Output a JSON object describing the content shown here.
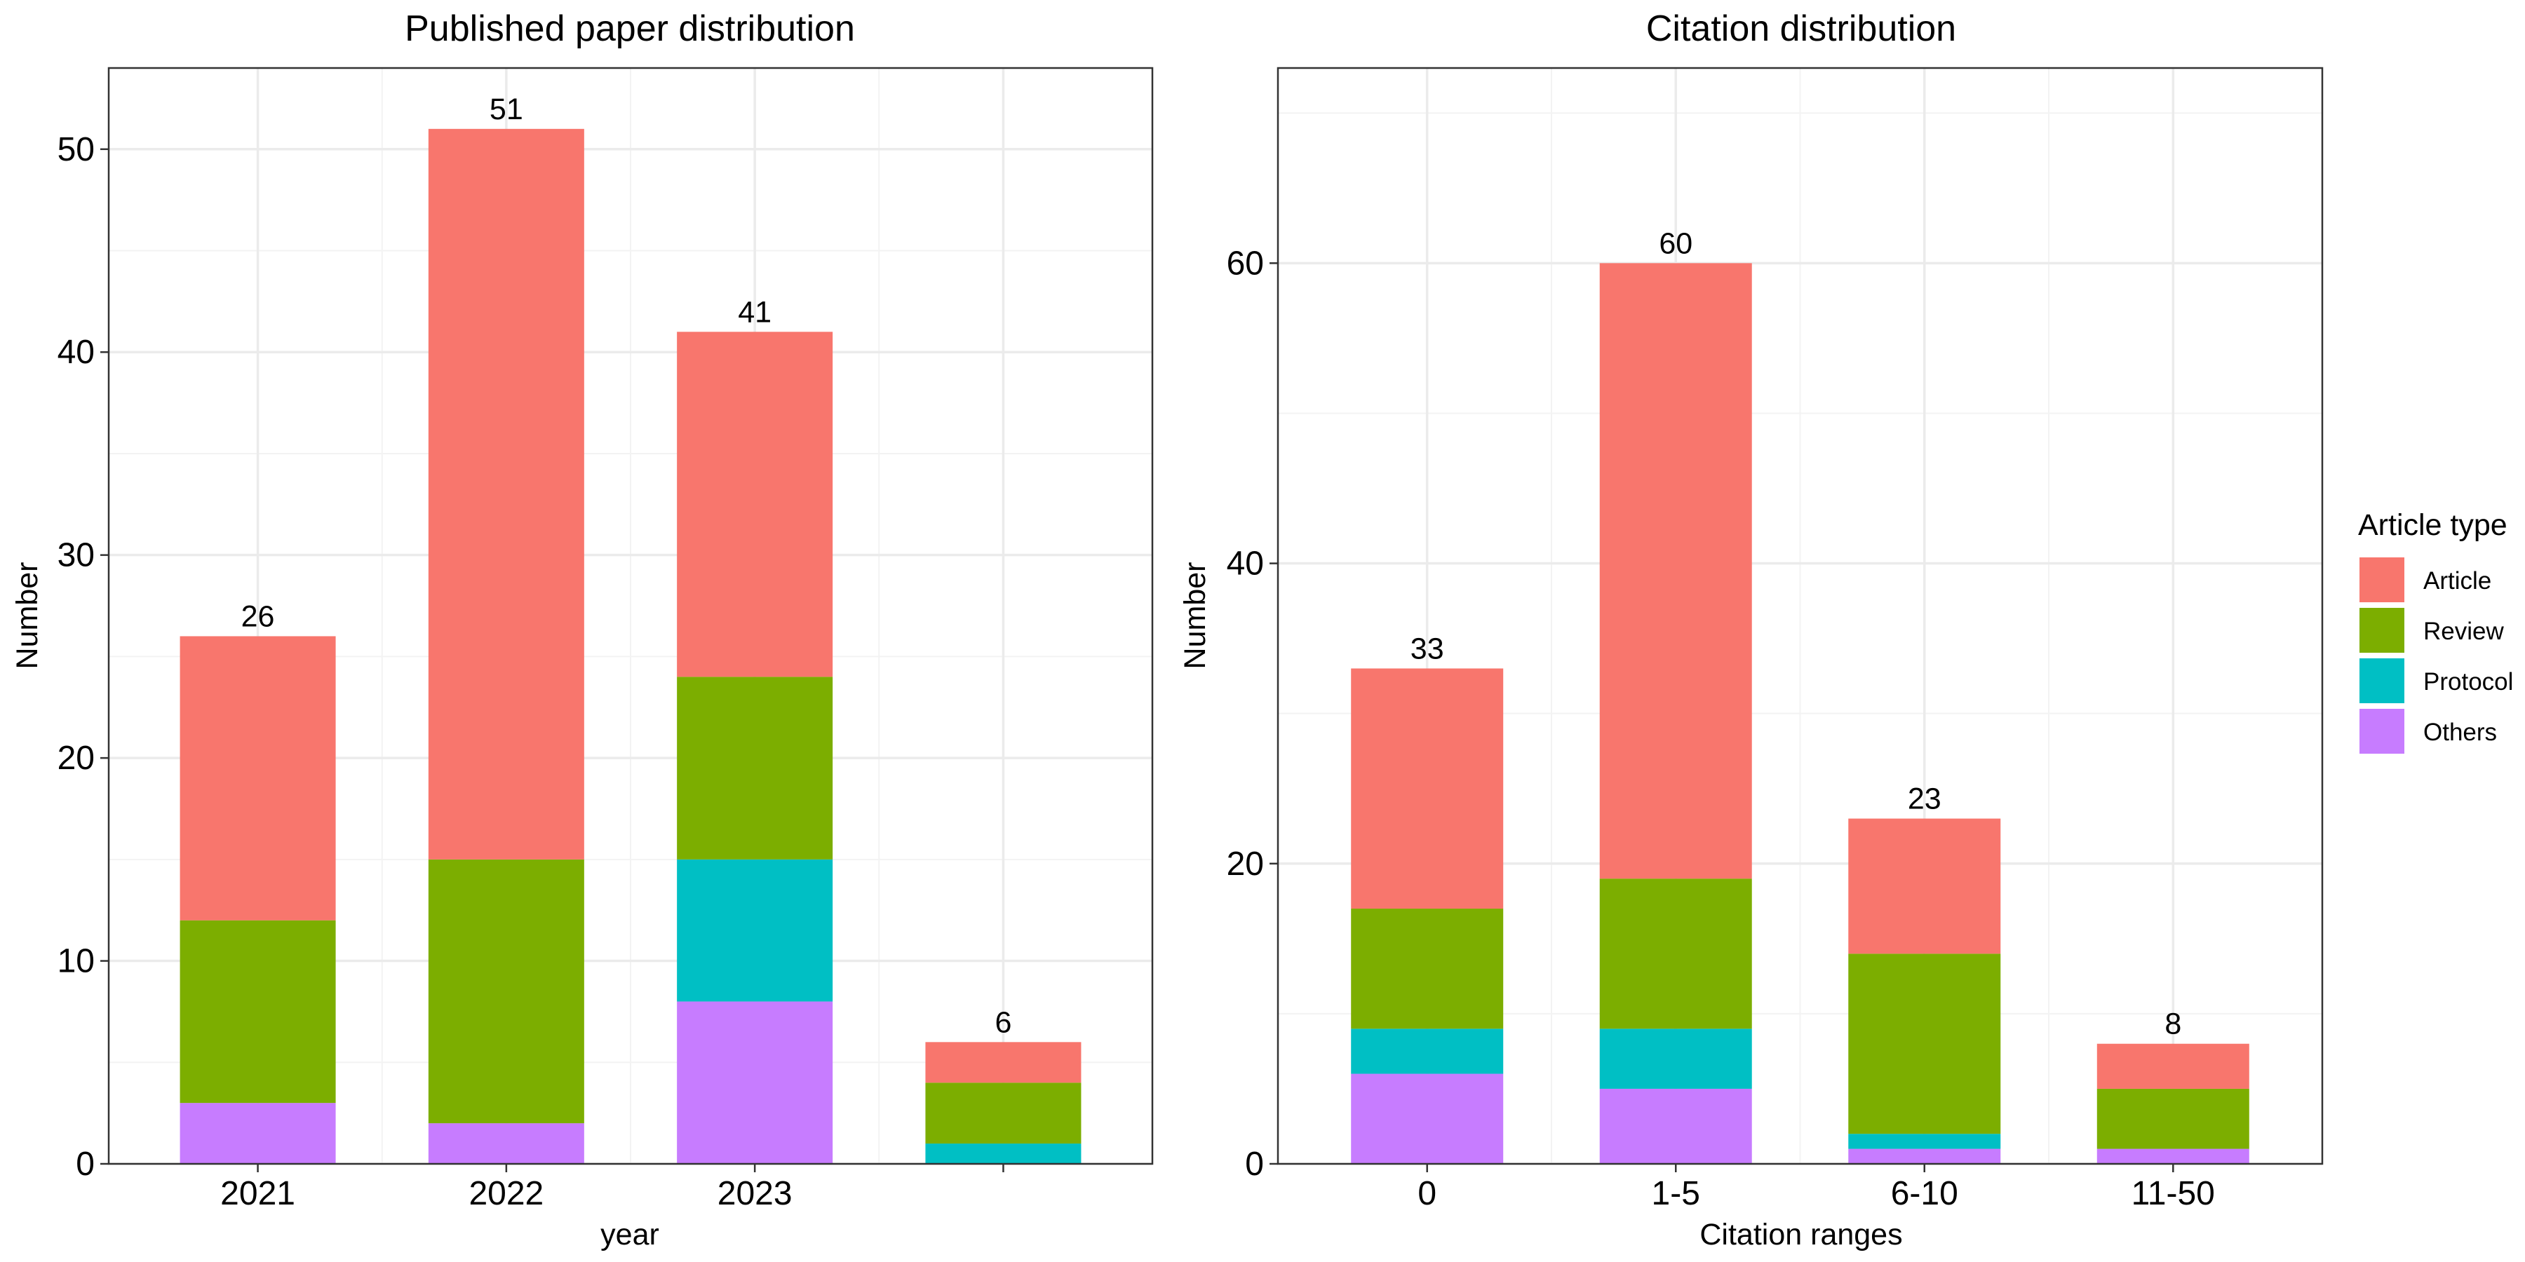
{
  "chart_data": [
    {
      "type": "bar",
      "stacked": true,
      "title": "Published paper distribution",
      "xlabel": "year",
      "ylabel": "Number",
      "categories": [
        "2021",
        "2022",
        "2023",
        ""
      ],
      "ylim": [
        0,
        54
      ],
      "yticks": [
        0,
        10,
        20,
        30,
        40,
        50
      ],
      "grid": true,
      "series": [
        {
          "name": "Others",
          "values": [
            3,
            2,
            8,
            0
          ]
        },
        {
          "name": "Protocol",
          "values": [
            0,
            0,
            7,
            1
          ]
        },
        {
          "name": "Review",
          "values": [
            9,
            13,
            9,
            3
          ]
        },
        {
          "name": "Article",
          "values": [
            14,
            36,
            17,
            2
          ]
        }
      ],
      "totals": [
        "26",
        "51",
        "41",
        "6"
      ]
    },
    {
      "type": "bar",
      "stacked": true,
      "title": "Citation distribution",
      "xlabel": "Citation ranges",
      "ylabel": "Number",
      "categories": [
        "0",
        "1-5",
        "6-10",
        "11-50"
      ],
      "ylim": [
        0,
        73
      ],
      "yticks": [
        0,
        20,
        40,
        60
      ],
      "grid": true,
      "series": [
        {
          "name": "Others",
          "values": [
            6,
            5,
            1,
            1
          ]
        },
        {
          "name": "Protocol",
          "values": [
            3,
            4,
            1,
            0
          ]
        },
        {
          "name": "Review",
          "values": [
            8,
            10,
            12,
            4
          ]
        },
        {
          "name": "Article",
          "values": [
            16,
            41,
            9,
            3
          ]
        }
      ],
      "totals": [
        "33",
        "60",
        "23",
        "8"
      ]
    }
  ],
  "legend": {
    "title": "Article type",
    "position": "right",
    "items": [
      {
        "label": "Article",
        "color": "#F8766D"
      },
      {
        "label": "Review",
        "color": "#7CAE00"
      },
      {
        "label": "Protocol",
        "color": "#00BFC4"
      },
      {
        "label": "Others",
        "color": "#C77CFF"
      }
    ]
  },
  "series_colors": {
    "Article": "#F8766D",
    "Review": "#7CAE00",
    "Protocol": "#00BFC4",
    "Others": "#C77CFF"
  }
}
